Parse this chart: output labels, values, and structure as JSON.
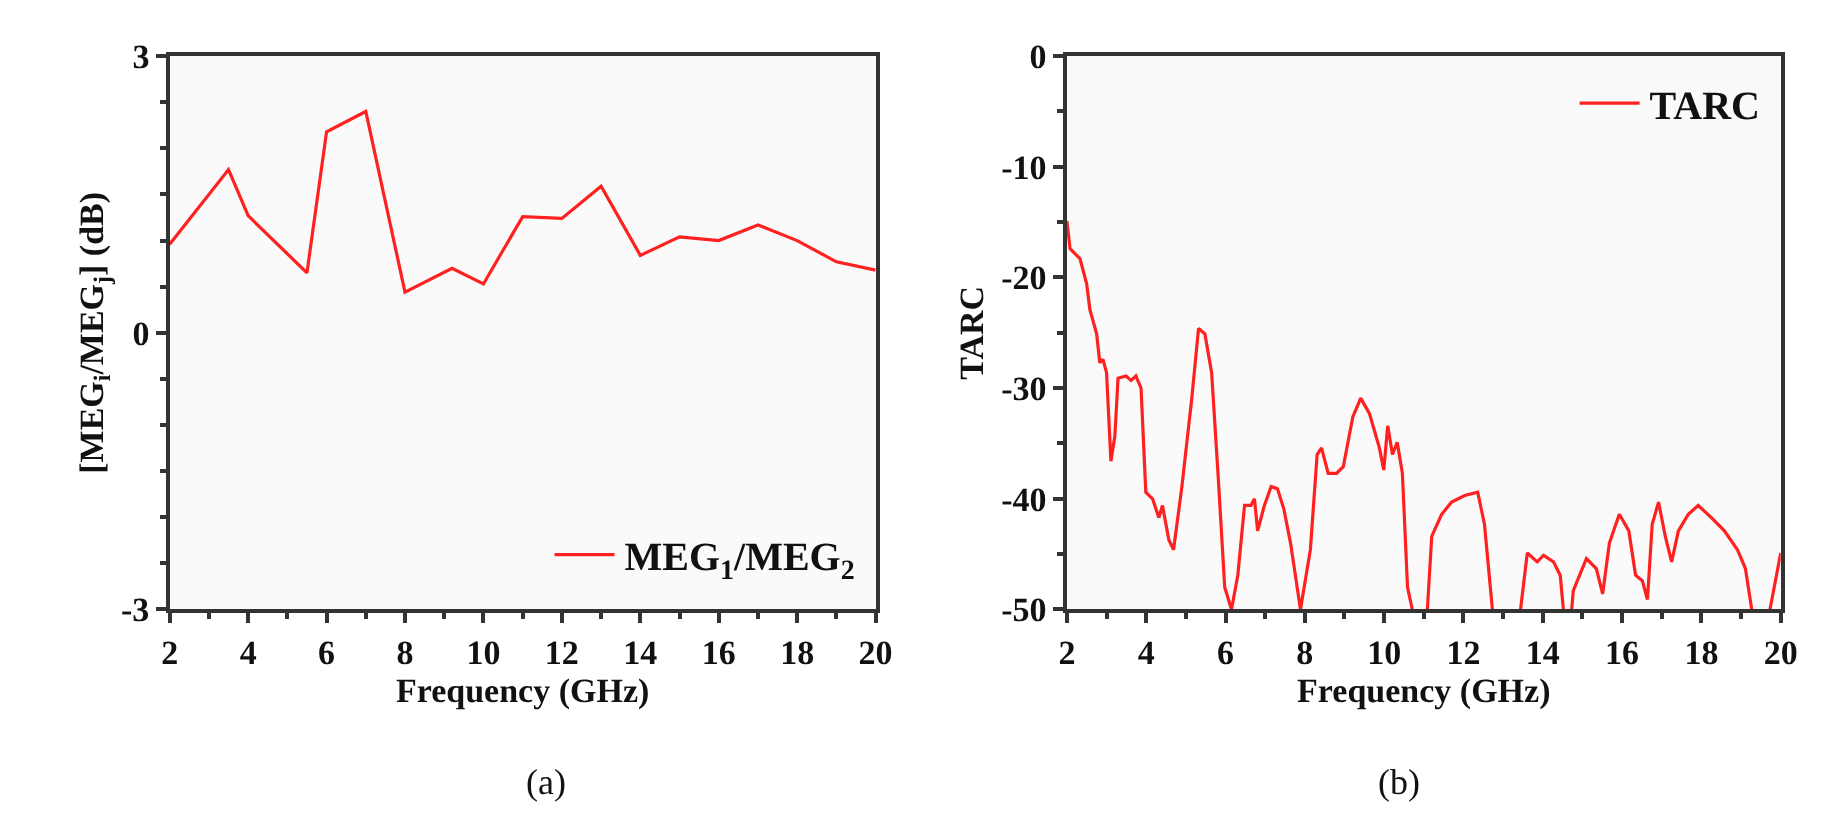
{
  "chart_data": [
    {
      "type": "line",
      "xlabel": "Frequency (GHz)",
      "ylabel": "[MEG$_{i}$/MEG$_{j}$] (dB)",
      "xlim": [
        2,
        20
      ],
      "xticks": [
        2,
        4,
        6,
        8,
        10,
        12,
        14,
        16,
        18,
        20
      ],
      "ylim": [
        -3,
        3
      ],
      "yticks": [
        -3,
        0,
        3
      ],
      "legend": "bottom right",
      "annotations": [
        "(a)"
      ],
      "series": [
        {
          "name": "MEG$_{1}$/MEG$_{2}$",
          "color": "#ff2020",
          "x": [
            2,
            3.5,
            4,
            5.5,
            6,
            7,
            8,
            9.2,
            10,
            11,
            12,
            13,
            14,
            15,
            16,
            17,
            18,
            19,
            20
          ],
          "values": [
            0.96,
            1.77,
            1.27,
            0.65,
            2.18,
            2.4,
            0.44,
            0.7,
            0.53,
            1.26,
            1.24,
            1.59,
            0.84,
            1.04,
            1.0,
            1.17,
            1.0,
            0.77,
            0.68
          ]
        }
      ]
    },
    {
      "type": "line",
      "xlabel": "Frequency (GHz)",
      "ylabel": "TARC",
      "xlim": [
        2,
        20
      ],
      "xticks": [
        2,
        4,
        6,
        8,
        10,
        12,
        14,
        16,
        18,
        20
      ],
      "ylim": [
        -50,
        0
      ],
      "yticks": [
        -50,
        -40,
        -30,
        -20,
        -10,
        0
      ],
      "legend": "top right",
      "annotations": [
        "(b)"
      ],
      "series": [
        {
          "name": "TARC",
          "color": "#ff2020",
          "x": [
            2,
            2.08,
            2.33,
            2.5,
            2.58,
            2.75,
            2.83,
            2.91,
            3.0,
            3.11,
            3.21,
            3.29,
            3.49,
            3.62,
            3.74,
            3.87,
            3.99,
            4.16,
            4.32,
            4.41,
            4.57,
            4.69,
            4.9,
            5.15,
            5.32,
            5.48,
            5.65,
            5.81,
            5.98,
            6.15,
            6.31,
            6.48,
            6.64,
            6.73,
            6.81,
            6.98,
            7.15,
            7.31,
            7.47,
            7.64,
            7.89,
            8.14,
            8.31,
            8.42,
            8.59,
            8.8,
            8.97,
            9.21,
            9.41,
            9.63,
            9.88,
            9.99,
            10.09,
            10.21,
            10.33,
            10.46,
            10.59,
            10.71,
            10.9,
            11.09,
            11.2,
            11.45,
            11.7,
            12.03,
            12.36,
            12.53,
            12.73,
            13.1,
            13.44,
            13.61,
            13.86,
            14.02,
            14.27,
            14.44,
            14.52,
            14.62,
            14.73,
            14.77,
            15.1,
            15.35,
            15.51,
            15.68,
            15.93,
            16.17,
            16.34,
            16.51,
            16.64,
            16.76,
            16.92,
            17.09,
            17.25,
            17.42,
            17.67,
            17.92,
            18.25,
            18.58,
            18.91,
            19.11,
            19.27,
            19.5,
            19.73,
            20
          ],
          "values": [
            -14.9,
            -17.4,
            -18.3,
            -20.6,
            -22.9,
            -25.1,
            -27.7,
            -27.4,
            -28.6,
            -36.6,
            -34.3,
            -29.1,
            -28.9,
            -29.3,
            -28.9,
            -30.0,
            -39.4,
            -40.0,
            -41.7,
            -40.6,
            -43.7,
            -44.6,
            -38.9,
            -30.9,
            -24.6,
            -25.1,
            -28.6,
            -37.7,
            -48.0,
            -50,
            -46.9,
            -40.6,
            -40.6,
            -40.0,
            -42.9,
            -40.6,
            -38.9,
            -39.1,
            -40.9,
            -44.0,
            -50,
            -44.6,
            -36.0,
            -35.4,
            -37.7,
            -37.7,
            -37.1,
            -32.6,
            -30.9,
            -32.3,
            -35.4,
            -37.4,
            -33.4,
            -36.0,
            -34.9,
            -37.7,
            -48.0,
            -50,
            null,
            -50,
            -43.4,
            -41.4,
            -40.3,
            -39.7,
            -39.4,
            -42.3,
            -50,
            null,
            -50,
            -44.9,
            -45.7,
            -45.1,
            -45.7,
            -46.9,
            -50,
            null,
            -50,
            -48.3,
            -45.4,
            -46.3,
            -48.6,
            -44.0,
            -41.4,
            -42.9,
            -46.9,
            -47.4,
            -49.1,
            -42.3,
            -40.3,
            -43.4,
            -45.7,
            -42.9,
            -41.4,
            -40.6,
            -41.7,
            -42.9,
            -44.6,
            -46.3,
            -50,
            null,
            -50,
            -44.9
          ]
        }
      ]
    }
  ]
}
